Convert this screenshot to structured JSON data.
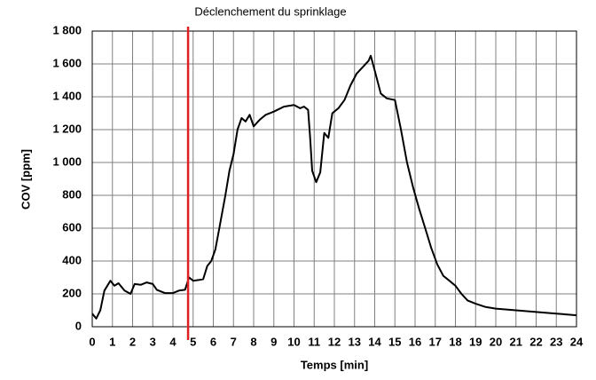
{
  "chart_data": {
    "type": "line",
    "xlabel": "Temps [min]",
    "ylabel": "COV [ppm]",
    "series": [
      {
        "color": "#000000",
        "x": [
          0,
          0.2,
          0.4,
          0.6,
          0.9,
          1.1,
          1.3,
          1.6,
          1.9,
          2.1,
          2.4,
          2.7,
          3.0,
          3.2,
          3.6,
          4.0,
          4.3,
          4.6,
          4.8,
          5.0,
          5.3,
          5.5,
          5.7,
          5.9,
          6.1,
          6.3,
          6.6,
          6.8,
          7.0,
          7.2,
          7.4,
          7.6,
          7.8,
          8.0,
          8.3,
          8.6,
          9.0,
          9.5,
          10.0,
          10.3,
          10.5,
          10.7,
          10.8,
          10.9,
          11.1,
          11.3,
          11.5,
          11.7,
          11.9,
          12.2,
          12.5,
          12.8,
          13.1,
          13.4,
          13.7,
          13.8,
          14.0,
          14.3,
          14.6,
          15.0,
          15.3,
          15.6,
          15.9,
          16.2,
          16.5,
          16.8,
          17.1,
          17.4,
          17.7,
          18.0,
          18.3,
          18.6,
          19.0,
          19.5,
          20,
          21,
          22,
          23,
          24
        ],
        "values": [
          80,
          50,
          100,
          220,
          280,
          250,
          265,
          220,
          200,
          260,
          255,
          270,
          260,
          225,
          205,
          205,
          220,
          225,
          300,
          280,
          285,
          290,
          370,
          400,
          470,
          600,
          800,
          950,
          1050,
          1200,
          1270,
          1250,
          1290,
          1220,
          1260,
          1290,
          1310,
          1340,
          1350,
          1330,
          1340,
          1320,
          1150,
          950,
          880,
          940,
          1180,
          1150,
          1300,
          1330,
          1380,
          1470,
          1540,
          1580,
          1620,
          1650,
          1560,
          1420,
          1390,
          1380,
          1200,
          1000,
          850,
          720,
          600,
          480,
          380,
          310,
          280,
          250,
          200,
          160,
          140,
          120,
          110,
          100,
          90,
          80,
          70
        ]
      }
    ],
    "annotations": [
      {
        "text": "Déclenchement du sprinklage",
        "x": 4.75,
        "color": "#e02020"
      }
    ],
    "xlim": [
      0,
      24
    ],
    "xticks": [
      0,
      1,
      2,
      3,
      4,
      5,
      6,
      7,
      8,
      9,
      10,
      11,
      12,
      13,
      14,
      15,
      16,
      17,
      18,
      19,
      20,
      21,
      22,
      23,
      24
    ],
    "ylim": [
      0,
      1800
    ],
    "yticks": [
      0,
      200,
      400,
      600,
      800,
      {
        "value": 1000,
        "label": "1 000"
      },
      {
        "value": 1200,
        "label": "1 200"
      },
      {
        "value": 1400,
        "label": "1 400"
      },
      {
        "value": 1600,
        "label": "1 600"
      },
      {
        "value": 1800,
        "label": "1 800"
      }
    ],
    "grid": true
  }
}
